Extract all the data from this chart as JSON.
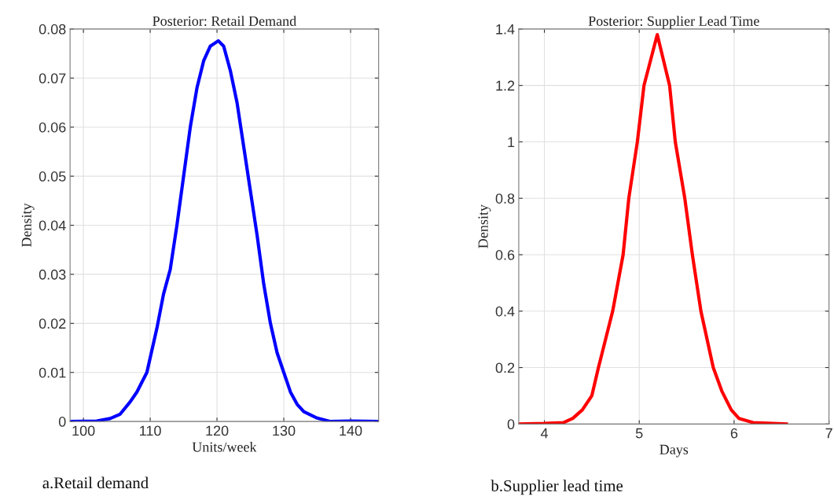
{
  "chart_data": [
    {
      "type": "line",
      "title": "Posterior: Retail Demand",
      "xlabel": "Units/week",
      "ylabel": "Density",
      "annotations": [
        "a.Retail demand"
      ],
      "x": [
        98,
        102,
        104,
        105.5,
        107,
        108,
        109.5,
        110,
        111,
        112,
        113,
        114,
        115,
        116,
        117,
        118,
        119,
        120.2,
        121,
        122,
        123,
        124,
        125,
        126,
        127,
        128,
        129,
        130,
        131,
        132,
        133,
        135,
        137,
        140,
        144.2
      ],
      "series": [
        {
          "color": "#0000ff",
          "values": [
            0,
            0.0001,
            0.0006,
            0.0015,
            0.004,
            0.006,
            0.01,
            0.013,
            0.019,
            0.026,
            0.031,
            0.04,
            0.05,
            0.06,
            0.068,
            0.0735,
            0.0765,
            0.0776,
            0.0765,
            0.0715,
            0.065,
            0.056,
            0.047,
            0.038,
            0.028,
            0.02,
            0.014,
            0.01,
            0.006,
            0.0035,
            0.002,
            0.0007,
            0,
            0.0001,
            0
          ]
        }
      ],
      "xlim": [
        98,
        144.2
      ],
      "ylim": [
        0,
        0.08
      ],
      "xticks": [
        100,
        110,
        120,
        130,
        140
      ],
      "yticks": [
        0,
        0.01,
        0.02,
        0.03,
        0.04,
        0.05,
        0.06,
        0.07,
        0.08
      ],
      "grid": true
    },
    {
      "type": "line",
      "title": "Posterior: Supplier Lead Time",
      "xlabel": "Days",
      "ylabel": "Density",
      "annotations": [
        "b.Supplier lead time"
      ],
      "x": [
        3.73,
        4.0,
        4.2,
        4.3,
        4.4,
        4.5,
        4.57,
        4.72,
        4.83,
        4.89,
        4.98,
        5.05,
        5.19,
        5.32,
        5.38,
        5.48,
        5.56,
        5.65,
        5.78,
        5.87,
        5.97,
        6.05,
        6.2,
        6.55
      ],
      "series": [
        {
          "color": "#ff0000",
          "values": [
            0,
            0.002,
            0.005,
            0.02,
            0.05,
            0.1,
            0.2,
            0.4,
            0.6,
            0.8,
            1.0,
            1.2,
            1.38,
            1.2,
            1.0,
            0.8,
            0.6,
            0.4,
            0.2,
            0.117,
            0.05,
            0.02,
            0.005,
            0
          ]
        }
      ],
      "xlim": [
        3.73,
        7
      ],
      "ylim": [
        0,
        1.4
      ],
      "xticks": [
        4,
        5,
        6,
        7
      ],
      "yticks": [
        0,
        0.2,
        0.4,
        0.6,
        0.8,
        1,
        1.2,
        1.4
      ],
      "grid": true
    }
  ]
}
